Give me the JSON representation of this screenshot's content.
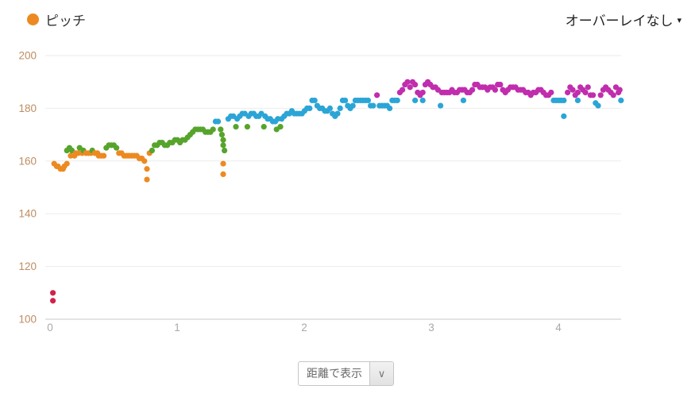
{
  "legend": {
    "series_label": "ピッチ",
    "series_color": "#ec8a21"
  },
  "overlay_dropdown": {
    "label": "オーバーレイなし"
  },
  "display_select": {
    "value": "距離で表示"
  },
  "icons": {
    "caret_down": "▾",
    "chevron_down": "∨"
  },
  "colors": {
    "grid_line": "#ebebeb",
    "axis_line": "#c9c9c9",
    "y_tick_label": "#bd8d62",
    "x_tick_label": "#a9a9a9",
    "text_dark": "#333333",
    "background": "#ffffff"
  },
  "chart_data": {
    "type": "scatter",
    "title": "",
    "xlabel": "",
    "ylabel": "",
    "series_name": "ピッチ",
    "legend_position": "top-left",
    "grid": "horizontal-only",
    "x_ticks": [
      0,
      1,
      2,
      3,
      4
    ],
    "y_ticks": [
      100,
      120,
      140,
      160,
      180,
      200
    ],
    "xlim": [
      0,
      4.5
    ],
    "ylim": [
      100,
      200
    ],
    "value_color_zones": [
      {
        "zone": "red",
        "max": 152,
        "color": "#d02349"
      },
      {
        "zone": "orange",
        "max": 164,
        "color": "#ec8a21"
      },
      {
        "zone": "green",
        "max": 174,
        "color": "#56a42c"
      },
      {
        "zone": "blue",
        "max": 184,
        "color": "#2ba5d6"
      },
      {
        "zone": "magenta",
        "max": 999,
        "color": "#c02dad"
      }
    ],
    "points": [
      [
        0.01,
        110
      ],
      [
        0.01,
        107
      ],
      [
        0.02,
        159
      ],
      [
        0.04,
        158
      ],
      [
        0.05,
        158
      ],
      [
        0.07,
        157
      ],
      [
        0.09,
        157
      ],
      [
        0.1,
        158
      ],
      [
        0.12,
        159
      ],
      [
        0.12,
        164
      ],
      [
        0.14,
        165
      ],
      [
        0.15,
        162
      ],
      [
        0.16,
        164
      ],
      [
        0.18,
        162
      ],
      [
        0.19,
        163
      ],
      [
        0.21,
        163
      ],
      [
        0.22,
        165
      ],
      [
        0.24,
        163
      ],
      [
        0.25,
        164
      ],
      [
        0.27,
        163
      ],
      [
        0.29,
        163
      ],
      [
        0.31,
        163
      ],
      [
        0.32,
        164
      ],
      [
        0.34,
        163
      ],
      [
        0.36,
        163
      ],
      [
        0.37,
        162
      ],
      [
        0.39,
        162
      ],
      [
        0.41,
        162
      ],
      [
        0.43,
        165
      ],
      [
        0.45,
        166
      ],
      [
        0.47,
        166
      ],
      [
        0.49,
        166
      ],
      [
        0.51,
        165
      ],
      [
        0.53,
        163
      ],
      [
        0.55,
        163
      ],
      [
        0.57,
        162
      ],
      [
        0.59,
        162
      ],
      [
        0.61,
        162
      ],
      [
        0.63,
        162
      ],
      [
        0.65,
        162
      ],
      [
        0.67,
        162
      ],
      [
        0.69,
        161
      ],
      [
        0.71,
        161
      ],
      [
        0.73,
        160
      ],
      [
        0.75,
        157
      ],
      [
        0.75,
        153
      ],
      [
        0.77,
        163
      ],
      [
        0.79,
        164
      ],
      [
        0.81,
        166
      ],
      [
        0.83,
        166
      ],
      [
        0.85,
        167
      ],
      [
        0.87,
        167
      ],
      [
        0.89,
        166
      ],
      [
        0.91,
        166
      ],
      [
        0.93,
        167
      ],
      [
        0.95,
        167
      ],
      [
        0.97,
        168
      ],
      [
        0.99,
        168
      ],
      [
        1.01,
        167
      ],
      [
        1.03,
        168
      ],
      [
        1.05,
        168
      ],
      [
        1.07,
        169
      ],
      [
        1.09,
        170
      ],
      [
        1.11,
        171
      ],
      [
        1.13,
        172
      ],
      [
        1.15,
        172
      ],
      [
        1.17,
        172
      ],
      [
        1.19,
        172
      ],
      [
        1.21,
        171
      ],
      [
        1.23,
        171
      ],
      [
        1.25,
        171
      ],
      [
        1.27,
        172
      ],
      [
        1.29,
        175
      ],
      [
        1.31,
        175
      ],
      [
        1.33,
        172
      ],
      [
        1.34,
        170
      ],
      [
        1.35,
        168
      ],
      [
        1.35,
        166
      ],
      [
        1.36,
        164
      ],
      [
        1.35,
        159
      ],
      [
        1.35,
        155
      ],
      [
        1.39,
        176
      ],
      [
        1.41,
        177
      ],
      [
        1.43,
        177
      ],
      [
        1.45,
        173
      ],
      [
        1.46,
        176
      ],
      [
        1.48,
        177
      ],
      [
        1.5,
        178
      ],
      [
        1.52,
        178
      ],
      [
        1.54,
        173
      ],
      [
        1.55,
        177
      ],
      [
        1.57,
        178
      ],
      [
        1.59,
        178
      ],
      [
        1.61,
        177
      ],
      [
        1.63,
        177
      ],
      [
        1.65,
        178
      ],
      [
        1.67,
        173
      ],
      [
        1.68,
        177
      ],
      [
        1.7,
        176
      ],
      [
        1.72,
        176
      ],
      [
        1.74,
        175
      ],
      [
        1.76,
        175
      ],
      [
        1.77,
        172
      ],
      [
        1.78,
        176
      ],
      [
        1.8,
        173
      ],
      [
        1.81,
        176
      ],
      [
        1.83,
        177
      ],
      [
        1.85,
        178
      ],
      [
        1.87,
        178
      ],
      [
        1.89,
        179
      ],
      [
        1.91,
        178
      ],
      [
        1.93,
        178
      ],
      [
        1.95,
        178
      ],
      [
        1.97,
        178
      ],
      [
        1.99,
        179
      ],
      [
        2.01,
        180
      ],
      [
        2.03,
        180
      ],
      [
        2.05,
        183
      ],
      [
        2.07,
        183
      ],
      [
        2.09,
        181
      ],
      [
        2.11,
        180
      ],
      [
        2.13,
        180
      ],
      [
        2.15,
        179
      ],
      [
        2.17,
        179
      ],
      [
        2.19,
        180
      ],
      [
        2.21,
        178
      ],
      [
        2.23,
        177
      ],
      [
        2.25,
        178
      ],
      [
        2.27,
        180
      ],
      [
        2.29,
        183
      ],
      [
        2.31,
        183
      ],
      [
        2.33,
        181
      ],
      [
        2.35,
        180
      ],
      [
        2.37,
        181
      ],
      [
        2.39,
        183
      ],
      [
        2.41,
        183
      ],
      [
        2.43,
        183
      ],
      [
        2.45,
        183
      ],
      [
        2.47,
        183
      ],
      [
        2.49,
        183
      ],
      [
        2.51,
        181
      ],
      [
        2.53,
        181
      ],
      [
        2.56,
        185
      ],
      [
        2.58,
        181
      ],
      [
        2.6,
        181
      ],
      [
        2.62,
        181
      ],
      [
        2.64,
        181
      ],
      [
        2.66,
        180
      ],
      [
        2.68,
        183
      ],
      [
        2.7,
        183
      ],
      [
        2.72,
        183
      ],
      [
        2.74,
        186
      ],
      [
        2.76,
        187
      ],
      [
        2.78,
        189
      ],
      [
        2.8,
        190
      ],
      [
        2.82,
        188
      ],
      [
        2.84,
        190
      ],
      [
        2.86,
        189
      ],
      [
        2.86,
        183
      ],
      [
        2.88,
        186
      ],
      [
        2.9,
        185
      ],
      [
        2.92,
        186
      ],
      [
        2.92,
        183
      ],
      [
        2.94,
        189
      ],
      [
        2.96,
        190
      ],
      [
        2.98,
        189
      ],
      [
        3.0,
        188
      ],
      [
        3.02,
        188
      ],
      [
        3.04,
        187
      ],
      [
        3.06,
        181
      ],
      [
        3.07,
        186
      ],
      [
        3.09,
        186
      ],
      [
        3.11,
        186
      ],
      [
        3.13,
        186
      ],
      [
        3.15,
        187
      ],
      [
        3.17,
        186
      ],
      [
        3.19,
        186
      ],
      [
        3.21,
        187
      ],
      [
        3.23,
        187
      ],
      [
        3.24,
        183
      ],
      [
        3.25,
        187
      ],
      [
        3.27,
        186
      ],
      [
        3.29,
        186
      ],
      [
        3.31,
        187
      ],
      [
        3.33,
        189
      ],
      [
        3.35,
        189
      ],
      [
        3.37,
        188
      ],
      [
        3.39,
        188
      ],
      [
        3.41,
        188
      ],
      [
        3.43,
        187
      ],
      [
        3.45,
        188
      ],
      [
        3.47,
        188
      ],
      [
        3.49,
        187
      ],
      [
        3.51,
        189
      ],
      [
        3.53,
        189
      ],
      [
        3.55,
        187
      ],
      [
        3.57,
        186
      ],
      [
        3.59,
        187
      ],
      [
        3.61,
        188
      ],
      [
        3.63,
        188
      ],
      [
        3.65,
        188
      ],
      [
        3.67,
        187
      ],
      [
        3.69,
        187
      ],
      [
        3.71,
        187
      ],
      [
        3.73,
        186
      ],
      [
        3.75,
        186
      ],
      [
        3.77,
        185
      ],
      [
        3.79,
        186
      ],
      [
        3.81,
        186
      ],
      [
        3.83,
        187
      ],
      [
        3.85,
        187
      ],
      [
        3.87,
        186
      ],
      [
        3.89,
        185
      ],
      [
        3.91,
        185
      ],
      [
        3.93,
        186
      ],
      [
        3.95,
        183
      ],
      [
        3.97,
        183
      ],
      [
        3.99,
        183
      ],
      [
        4.01,
        183
      ],
      [
        4.03,
        183
      ],
      [
        4.03,
        177
      ],
      [
        4.06,
        186
      ],
      [
        4.08,
        188
      ],
      [
        4.1,
        187
      ],
      [
        4.12,
        185
      ],
      [
        4.14,
        186
      ],
      [
        4.14,
        183
      ],
      [
        4.16,
        188
      ],
      [
        4.18,
        187
      ],
      [
        4.2,
        186
      ],
      [
        4.22,
        188
      ],
      [
        4.24,
        185
      ],
      [
        4.26,
        185
      ],
      [
        4.28,
        182
      ],
      [
        4.3,
        181
      ],
      [
        4.32,
        185
      ],
      [
        4.34,
        187
      ],
      [
        4.36,
        188
      ],
      [
        4.38,
        187
      ],
      [
        4.4,
        186
      ],
      [
        4.42,
        185
      ],
      [
        4.44,
        188
      ],
      [
        4.46,
        186
      ],
      [
        4.47,
        187
      ],
      [
        4.48,
        183
      ]
    ]
  }
}
